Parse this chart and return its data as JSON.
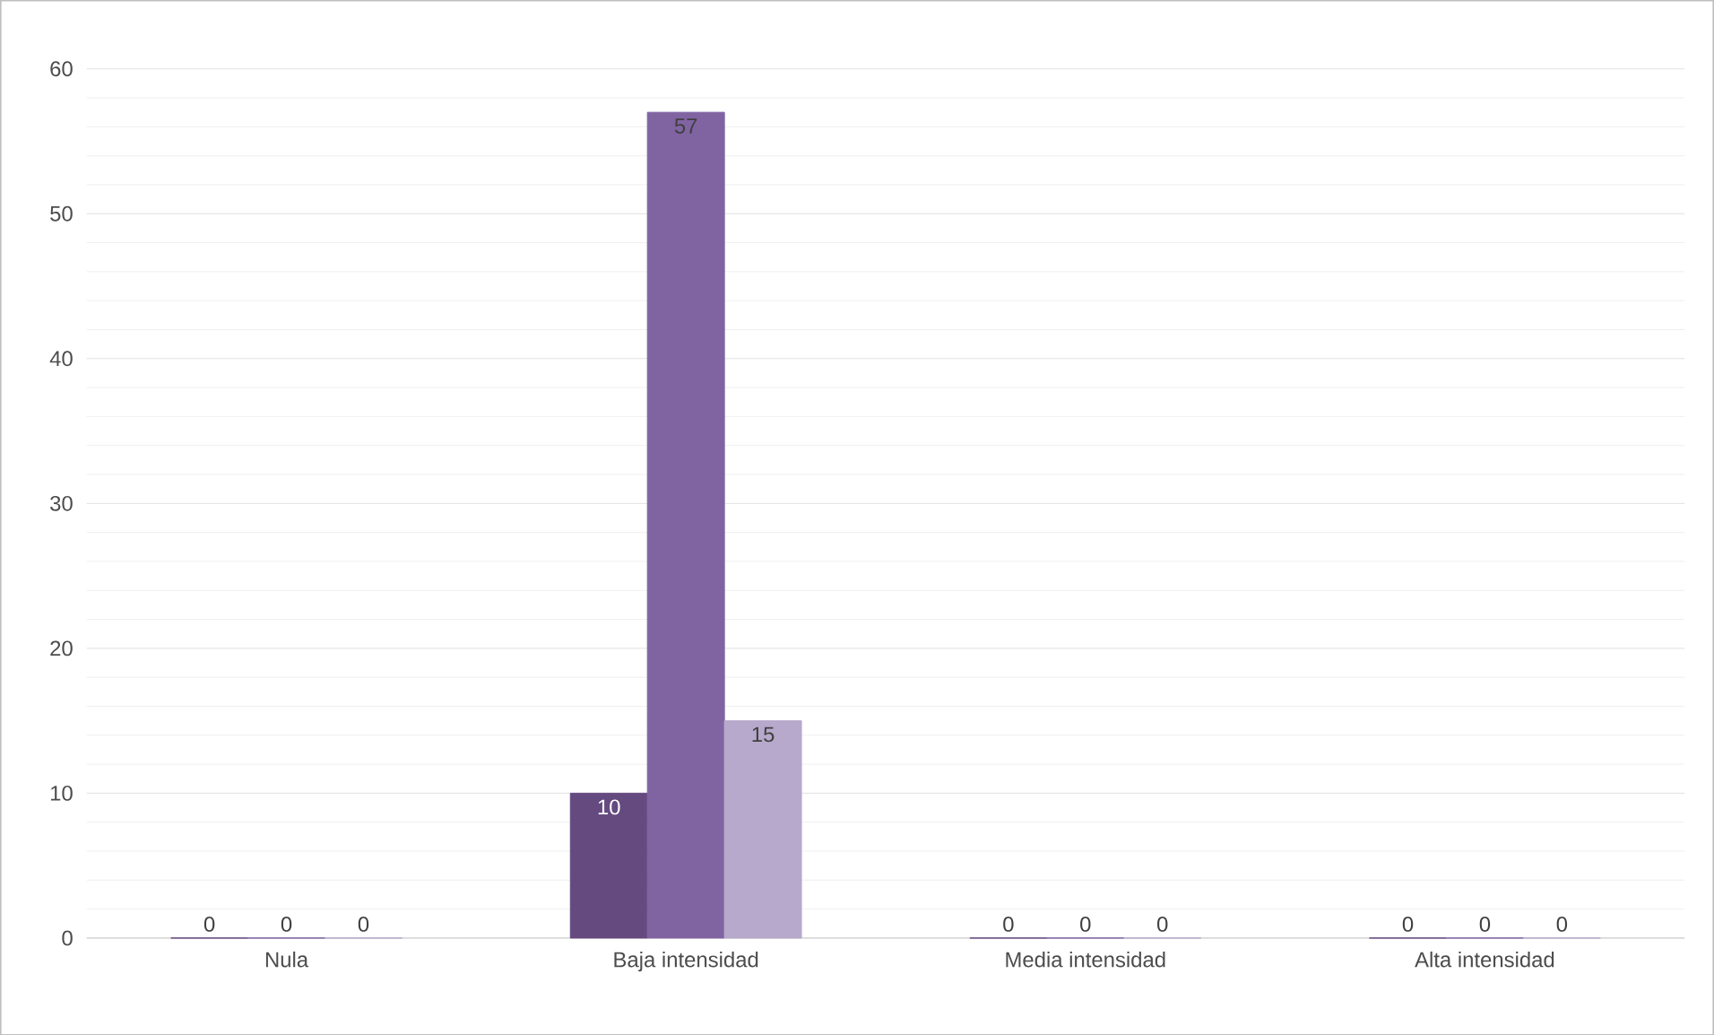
{
  "chart_data": {
    "type": "bar",
    "categories": [
      "Nula",
      "Baja intensidad",
      "Media intensidad",
      "Alta intensidad"
    ],
    "series": [
      {
        "color": "#654a80",
        "values": [
          0,
          10,
          0,
          0
        ]
      },
      {
        "color": "#8064a2",
        "values": [
          0,
          57,
          0,
          0
        ]
      },
      {
        "color": "#b7a9cb",
        "values": [
          0,
          15,
          0,
          0
        ]
      }
    ],
    "ylim": [
      0,
      60
    ],
    "yticks": [
      0,
      10,
      20,
      30,
      40,
      50,
      60
    ],
    "grid": "y",
    "data_labels": true
  }
}
